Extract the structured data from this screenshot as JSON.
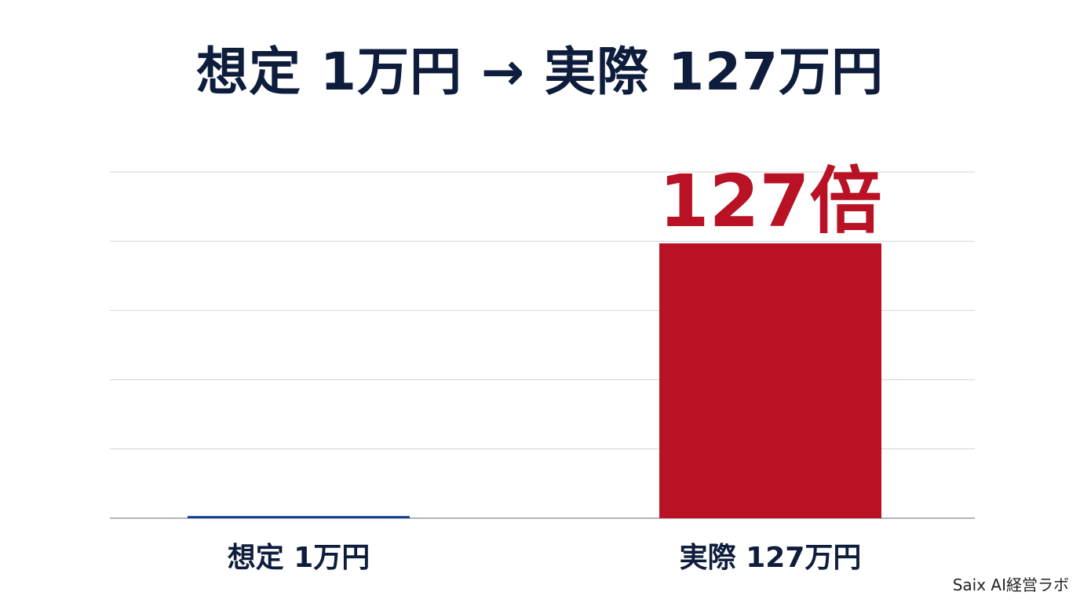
{
  "chart_data": {
    "type": "bar",
    "title": "想定 1万円 → 実際 127万円",
    "categories": [
      "想定 1万円",
      "実際 127万円"
    ],
    "values": [
      1,
      127
    ],
    "unit": "万円",
    "ylim": [
      0,
      160
    ],
    "grid": true,
    "annotation": "127倍",
    "bar_colors": [
      "#0c3d8f",
      "#b81224"
    ],
    "gridline_count": 5
  },
  "watermark": "Saix AI経営ラボ",
  "colors": {
    "title": "#0f1d3d",
    "annotation": "#b81224",
    "grid": "#d4d4d4",
    "axis": "#9a9a9a"
  }
}
